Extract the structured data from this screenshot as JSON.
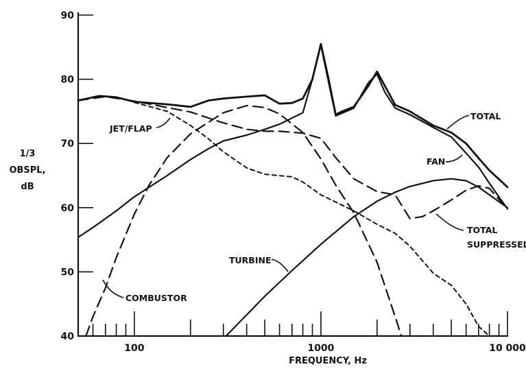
{
  "chart_data": {
    "type": "line",
    "xscale": "log",
    "xlim": [
      50,
      10000
    ],
    "ylim": [
      40,
      90
    ],
    "grid": false,
    "xlabel": "FREQUENCY, Hz",
    "ylabel_lines": [
      "1/3",
      "OBSPL,",
      "dB"
    ],
    "x_tick_labels": [
      {
        "x": 100,
        "label": "100"
      },
      {
        "x": 1000,
        "label": "1000"
      },
      {
        "x": 10000,
        "label": "10 000"
      }
    ],
    "y_tick_labels": [
      {
        "y": 40,
        "label": "40"
      },
      {
        "y": 50,
        "label": "50"
      },
      {
        "y": 60,
        "label": "60"
      },
      {
        "y": 70,
        "label": "70"
      },
      {
        "y": 80,
        "label": "80"
      },
      {
        "y": 90,
        "label": "90"
      }
    ],
    "series": [
      {
        "name": "TOTAL",
        "style": "solid-bold",
        "points": [
          [
            50,
            76.7
          ],
          [
            65,
            77.4
          ],
          [
            80,
            77.2
          ],
          [
            100,
            76.5
          ],
          [
            150,
            76.1
          ],
          [
            200,
            75.7
          ],
          [
            250,
            76.7
          ],
          [
            300,
            77
          ],
          [
            400,
            77.3
          ],
          [
            500,
            77.5
          ],
          [
            600,
            76.2
          ],
          [
            700,
            76.3
          ],
          [
            800,
            77
          ],
          [
            900,
            80
          ],
          [
            1000,
            85.5
          ],
          [
            1100,
            80
          ],
          [
            1200,
            74.5
          ],
          [
            1300,
            75
          ],
          [
            1500,
            75.7
          ],
          [
            1800,
            79
          ],
          [
            2000,
            81.2
          ],
          [
            2200,
            79
          ],
          [
            2500,
            76
          ],
          [
            3000,
            75
          ],
          [
            4000,
            72.8
          ],
          [
            5000,
            71.7
          ],
          [
            6000,
            70
          ],
          [
            7000,
            67.7
          ],
          [
            8000,
            65.8
          ],
          [
            10000,
            63.2
          ]
        ]
      },
      {
        "name": "FAN",
        "style": "solid",
        "points": [
          [
            50,
            55.4
          ],
          [
            60,
            56.9
          ],
          [
            80,
            59.5
          ],
          [
            100,
            61.7
          ],
          [
            150,
            65
          ],
          [
            200,
            67.5
          ],
          [
            250,
            69.2
          ],
          [
            300,
            70.4
          ],
          [
            400,
            71.3
          ],
          [
            500,
            72.2
          ],
          [
            600,
            73
          ],
          [
            800,
            74.8
          ],
          [
            900,
            80
          ],
          [
            1000,
            85.3
          ],
          [
            1100,
            79.5
          ],
          [
            1200,
            74.3
          ],
          [
            1500,
            75.5
          ],
          [
            1800,
            79.5
          ],
          [
            2000,
            80.8
          ],
          [
            2200,
            78
          ],
          [
            2500,
            75.5
          ],
          [
            3000,
            74.5
          ],
          [
            4000,
            72.5
          ],
          [
            5000,
            71
          ],
          [
            6000,
            68.5
          ],
          [
            7000,
            66.3
          ],
          [
            8000,
            63.8
          ],
          [
            10000,
            59.8
          ]
        ]
      },
      {
        "name": "JET/FLAP",
        "style": "long-dash",
        "points": [
          [
            50,
            76.7
          ],
          [
            70,
            77.3
          ],
          [
            100,
            76.6
          ],
          [
            150,
            75.6
          ],
          [
            200,
            74.9
          ],
          [
            300,
            73.2
          ],
          [
            400,
            72.2
          ],
          [
            500,
            71.9
          ],
          [
            600,
            71.9
          ],
          [
            800,
            71.6
          ],
          [
            1000,
            70.8
          ],
          [
            1200,
            67.8
          ],
          [
            1500,
            64.5
          ],
          [
            2000,
            62.5
          ],
          [
            2500,
            62
          ],
          [
            3000,
            58.3
          ],
          [
            3500,
            58.6
          ],
          [
            4000,
            59.5
          ],
          [
            5000,
            61.2
          ],
          [
            6000,
            62.7
          ],
          [
            7000,
            63.4
          ],
          [
            8000,
            63
          ],
          [
            9000,
            61.3
          ],
          [
            10000,
            60
          ]
        ]
      },
      {
        "name": "TOTAL SUPPRESSED",
        "style": "short-dash",
        "points": [
          [
            100,
            76.4
          ],
          [
            150,
            75
          ],
          [
            200,
            72.8
          ],
          [
            250,
            70.7
          ],
          [
            300,
            68.7
          ],
          [
            400,
            66.2
          ],
          [
            500,
            65.2
          ],
          [
            700,
            64.8
          ],
          [
            800,
            64
          ],
          [
            1000,
            62
          ],
          [
            1500,
            59.5
          ],
          [
            2000,
            57.4
          ],
          [
            2500,
            56
          ],
          [
            3000,
            54
          ],
          [
            4000,
            49.8
          ],
          [
            5000,
            47.9
          ],
          [
            6000,
            45
          ],
          [
            7000,
            41.5
          ],
          [
            8000,
            40
          ]
        ]
      },
      {
        "name": "COMBUSTOR",
        "style": "long-dash",
        "points": [
          [
            55,
            40
          ],
          [
            60,
            43
          ],
          [
            70,
            47.5
          ],
          [
            80,
            52.2
          ],
          [
            100,
            59
          ],
          [
            120,
            63.5
          ],
          [
            150,
            67.8
          ],
          [
            200,
            71.5
          ],
          [
            300,
            74.8
          ],
          [
            400,
            75.9
          ],
          [
            500,
            75.6
          ],
          [
            600,
            74.6
          ],
          [
            800,
            71.7
          ],
          [
            1000,
            67.6
          ],
          [
            1200,
            63.5
          ],
          [
            1500,
            59.2
          ],
          [
            2000,
            51.5
          ],
          [
            2500,
            43
          ],
          [
            2700,
            40
          ]
        ]
      },
      {
        "name": "TURBINE",
        "style": "solid",
        "points": [
          [
            310,
            40
          ],
          [
            400,
            43.3
          ],
          [
            500,
            46.2
          ],
          [
            700,
            50.2
          ],
          [
            1000,
            54.3
          ],
          [
            1500,
            58.6
          ],
          [
            2000,
            61
          ],
          [
            2500,
            62.4
          ],
          [
            3000,
            63.3
          ],
          [
            4000,
            64.2
          ],
          [
            5000,
            64.5
          ],
          [
            6000,
            64.2
          ],
          [
            7000,
            63.2
          ],
          [
            8000,
            62
          ],
          [
            10000,
            60
          ]
        ]
      }
    ],
    "annotations": [
      {
        "id": "total",
        "text": "TOTAL"
      },
      {
        "id": "fan",
        "text": "FAN"
      },
      {
        "id": "jetflap",
        "text": "JET/FLAP"
      },
      {
        "id": "suppressed1",
        "text": "TOTAL"
      },
      {
        "id": "suppressed2",
        "text": "SUPPRESSED"
      },
      {
        "id": "turbine",
        "text": "TURBINE"
      },
      {
        "id": "combustor",
        "text": "COMBUSTOR"
      }
    ]
  }
}
